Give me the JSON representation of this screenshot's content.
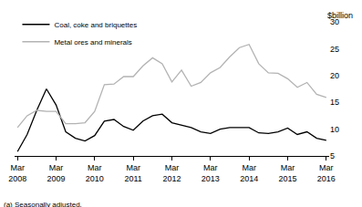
{
  "chart_data": {
    "type": "line",
    "y_label": "$billion",
    "annotations": [
      "(a) Seasonally adjusted."
    ],
    "categories": [
      "Mar 2008",
      null,
      null,
      null,
      "Mar 2009",
      null,
      null,
      null,
      "Mar 2010",
      null,
      null,
      null,
      "Mar 2011",
      null,
      null,
      null,
      "Mar 2012",
      null,
      null,
      null,
      "Mar 2013",
      null,
      null,
      null,
      "Mar 2014",
      null,
      null,
      null,
      "Mar 2015",
      null,
      null,
      null,
      "Mar 2016"
    ],
    "series": [
      {
        "name": "Coal, coke and briquettes",
        "color": "#000000",
        "values": [
          5.8,
          9,
          13.5,
          17.5,
          14.5,
          9.5,
          8.3,
          7.8,
          8.8,
          11.5,
          11.8,
          10.5,
          9.8,
          11.5,
          12.5,
          12.8,
          11.2,
          10.8,
          10.3,
          9.5,
          9.2,
          10,
          10.3,
          10.3,
          10.3,
          9.3,
          9.2,
          9.5,
          10.2,
          9,
          9.5,
          8.3,
          7.9
        ]
      },
      {
        "name": "Metal ores and minerals",
        "color": "#b3b3b3",
        "values": [
          10.3,
          12.5,
          13.5,
          13.3,
          13.3,
          11,
          11,
          11.2,
          13.3,
          18.3,
          18.4,
          19.8,
          19.8,
          21.8,
          23.3,
          22.2,
          18.8,
          21,
          18,
          18.7,
          20.5,
          21.5,
          23.5,
          25.2,
          25.8,
          22.2,
          20.5,
          20.4,
          19.4,
          17.8,
          18.7,
          16.5,
          15.9
        ]
      }
    ],
    "ylim": [
      5,
      30
    ],
    "yticks": [
      5,
      10,
      15,
      20,
      25,
      30
    ],
    "grid": false,
    "legend": "top-left"
  }
}
